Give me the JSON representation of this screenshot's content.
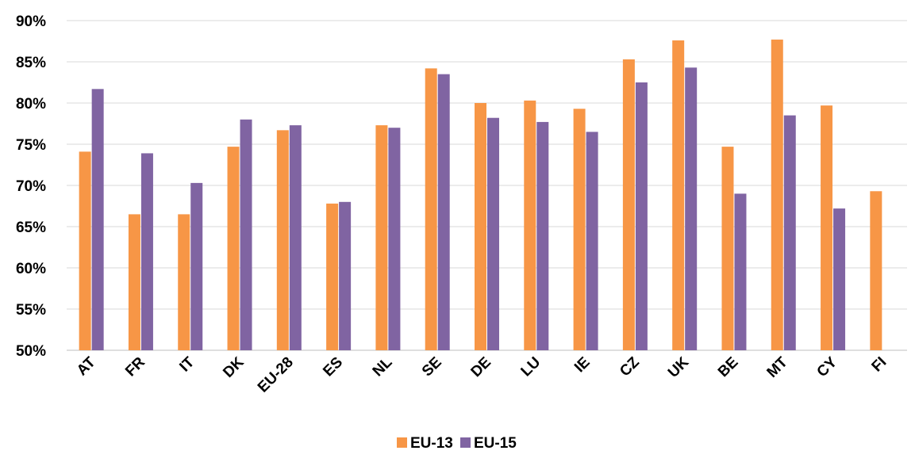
{
  "colors": {
    "eu13": "#F79646",
    "eu15": "#8064A2",
    "grid": "#D9D9D9",
    "axis": "#BFBFBF"
  },
  "chart_data": {
    "type": "bar",
    "title": "",
    "xlabel": "",
    "ylabel": "",
    "ylim": [
      0.5,
      0.9
    ],
    "y_ticks": [
      0.5,
      0.55,
      0.6,
      0.65,
      0.7,
      0.75,
      0.8,
      0.85,
      0.9
    ],
    "y_tick_labels": [
      "50%",
      "55%",
      "60%",
      "65%",
      "70%",
      "75%",
      "80%",
      "85%",
      "90%"
    ],
    "grid": true,
    "legend_position": "bottom",
    "categories": [
      "AT",
      "FR",
      "IT",
      "DK",
      "EU-28",
      "ES",
      "NL",
      "SE",
      "DE",
      "LU",
      "IE",
      "CZ",
      "UK",
      "BE",
      "MT",
      "CY",
      "FI"
    ],
    "series": [
      {
        "name": "EU-13",
        "color": "#F79646",
        "values": [
          0.741,
          0.665,
          0.665,
          0.747,
          0.767,
          0.678,
          0.773,
          0.842,
          0.8,
          0.803,
          0.793,
          0.853,
          0.876,
          0.747,
          0.877,
          0.797,
          0.693
        ]
      },
      {
        "name": "EU-15",
        "color": "#8064A2",
        "values": [
          0.817,
          0.739,
          0.703,
          0.78,
          0.773,
          0.68,
          0.77,
          0.835,
          0.782,
          0.777,
          0.765,
          0.825,
          0.843,
          0.69,
          0.785,
          0.672,
          null
        ]
      }
    ]
  }
}
